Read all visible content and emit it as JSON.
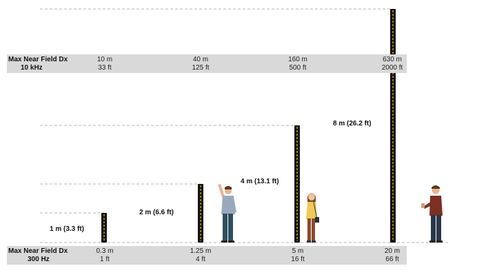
{
  "top_band": {
    "label_line1": "Max Near Field Dx",
    "label_line2": "10 kHz",
    "values": [
      {
        "metric": "10 m",
        "imperial": "33 ft"
      },
      {
        "metric": "40 m",
        "imperial": "125 ft"
      },
      {
        "metric": "160 m",
        "imperial": "500 ft"
      },
      {
        "metric": "630 m",
        "imperial": "2000 ft"
      }
    ]
  },
  "bottom_band": {
    "label_line1": "Max Near Field Dx",
    "label_line2": "300 Hz",
    "values": [
      {
        "metric": "0.3 m",
        "imperial": "1 ft"
      },
      {
        "metric": "1.25 m",
        "imperial": "4 ft"
      },
      {
        "metric": "5 m",
        "imperial": "16 ft"
      },
      {
        "metric": "20 m",
        "imperial": "66 ft"
      }
    ]
  },
  "antennas": [
    {
      "height_m": 1,
      "label": "1 m (3.3 ft)"
    },
    {
      "height_m": 2,
      "label": "2 m (6.6 ft)"
    },
    {
      "height_m": 4,
      "label": "4 m (13.1 ft)"
    },
    {
      "height_m": 8,
      "label": "8 m (26.2 ft)"
    }
  ],
  "colors": {
    "band": "#d9d9da",
    "post": "#111111",
    "stripe": "#f2c200",
    "guide": "#b5b5b5"
  },
  "figures": [
    {
      "name": "waving-man",
      "shirt": "#9aa8bd",
      "pants": "#2f4f5e"
    },
    {
      "name": "woman-with-bag",
      "shirt": "#f0c95a",
      "pants": "#8a4a2e"
    },
    {
      "name": "man-with-cup",
      "shirt": "#7b2e22",
      "pants": "#2b3548"
    }
  ]
}
